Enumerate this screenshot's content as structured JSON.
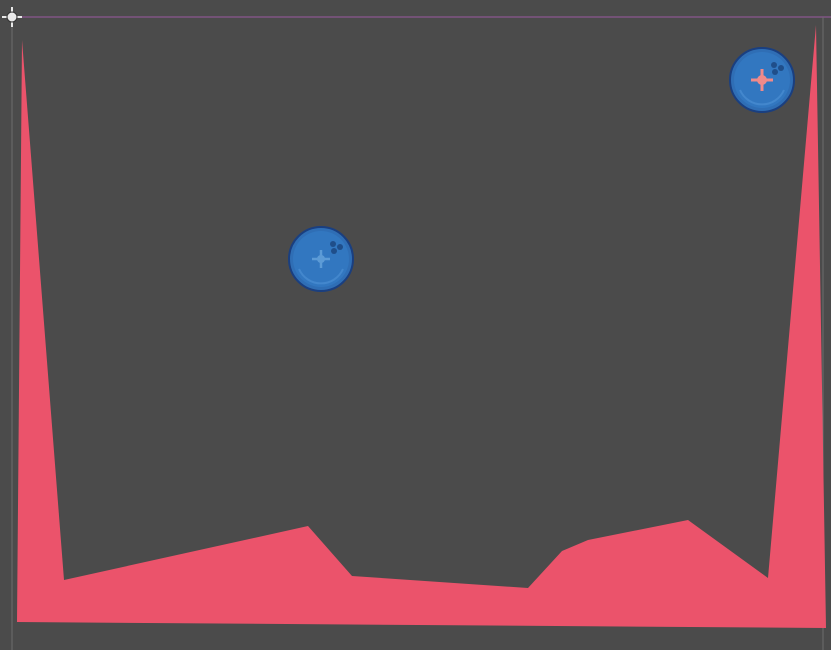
{
  "editor": {
    "background_color": "#4b4b4b",
    "bounds_line_color": "#9b5aa0"
  },
  "origin_gizmo": {
    "icon": "crosshair-origin-icon",
    "color": "#e8e8e8"
  },
  "terrain": {
    "icon": "terrain-polygon",
    "fill_color": "#eb536b"
  },
  "bodies": [
    {
      "name": "ball-dynamic",
      "icon": "ball-icon",
      "color": "#2f6eb5",
      "marker_color": "#5c9bd6"
    },
    {
      "name": "ball-player",
      "icon": "ball-icon",
      "color": "#2f6eb5",
      "marker_color": "#f08a8a"
    }
  ]
}
